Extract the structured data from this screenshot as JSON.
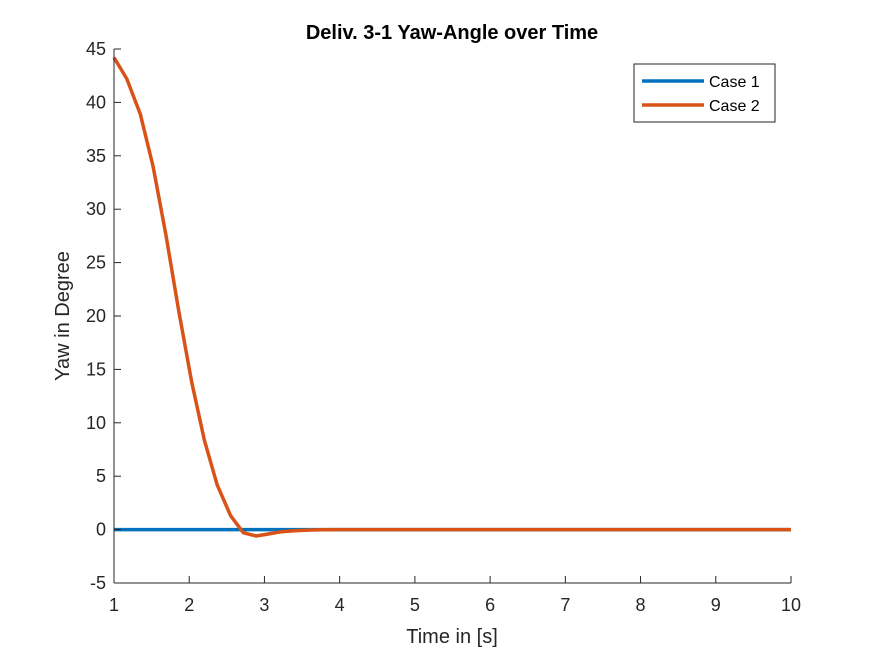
{
  "chart_data": {
    "type": "line",
    "title": "Deliv. 3-1 Yaw-Angle over Time",
    "xlabel": "Time in [s]",
    "ylabel": "Yaw in Degree",
    "xlim": [
      1,
      10
    ],
    "ylim": [
      -5,
      45
    ],
    "xticks": [
      1,
      2,
      3,
      4,
      5,
      6,
      7,
      8,
      9,
      10
    ],
    "yticks": [
      -5,
      0,
      5,
      10,
      15,
      20,
      25,
      30,
      35,
      40,
      45
    ],
    "grid": false,
    "legend_position": "top-right",
    "series": [
      {
        "name": "Case 1",
        "color": "#0072BD",
        "x": [
          1,
          10
        ],
        "y": [
          0,
          0
        ]
      },
      {
        "name": "Case 2",
        "color": "#D95319",
        "x": [
          1.0,
          1.17,
          1.35,
          1.52,
          1.69,
          1.86,
          2.03,
          2.2,
          2.37,
          2.55,
          2.72,
          2.89,
          3.06,
          3.23,
          3.4,
          3.58,
          3.75,
          3.92,
          4.09,
          4.26,
          4.43,
          4.6,
          5.0,
          6.0,
          7.0,
          8.0,
          9.0,
          10.0
        ],
        "y": [
          44.2,
          42.2,
          38.9,
          34.0,
          27.6,
          20.5,
          13.9,
          8.4,
          4.2,
          1.3,
          -0.3,
          -0.6,
          -0.4,
          -0.2,
          -0.1,
          -0.05,
          -0.02,
          0.0,
          0.0,
          0.0,
          0.0,
          0.0,
          0.0,
          0.0,
          0.0,
          0.0,
          0.0,
          0.0
        ]
      }
    ]
  }
}
